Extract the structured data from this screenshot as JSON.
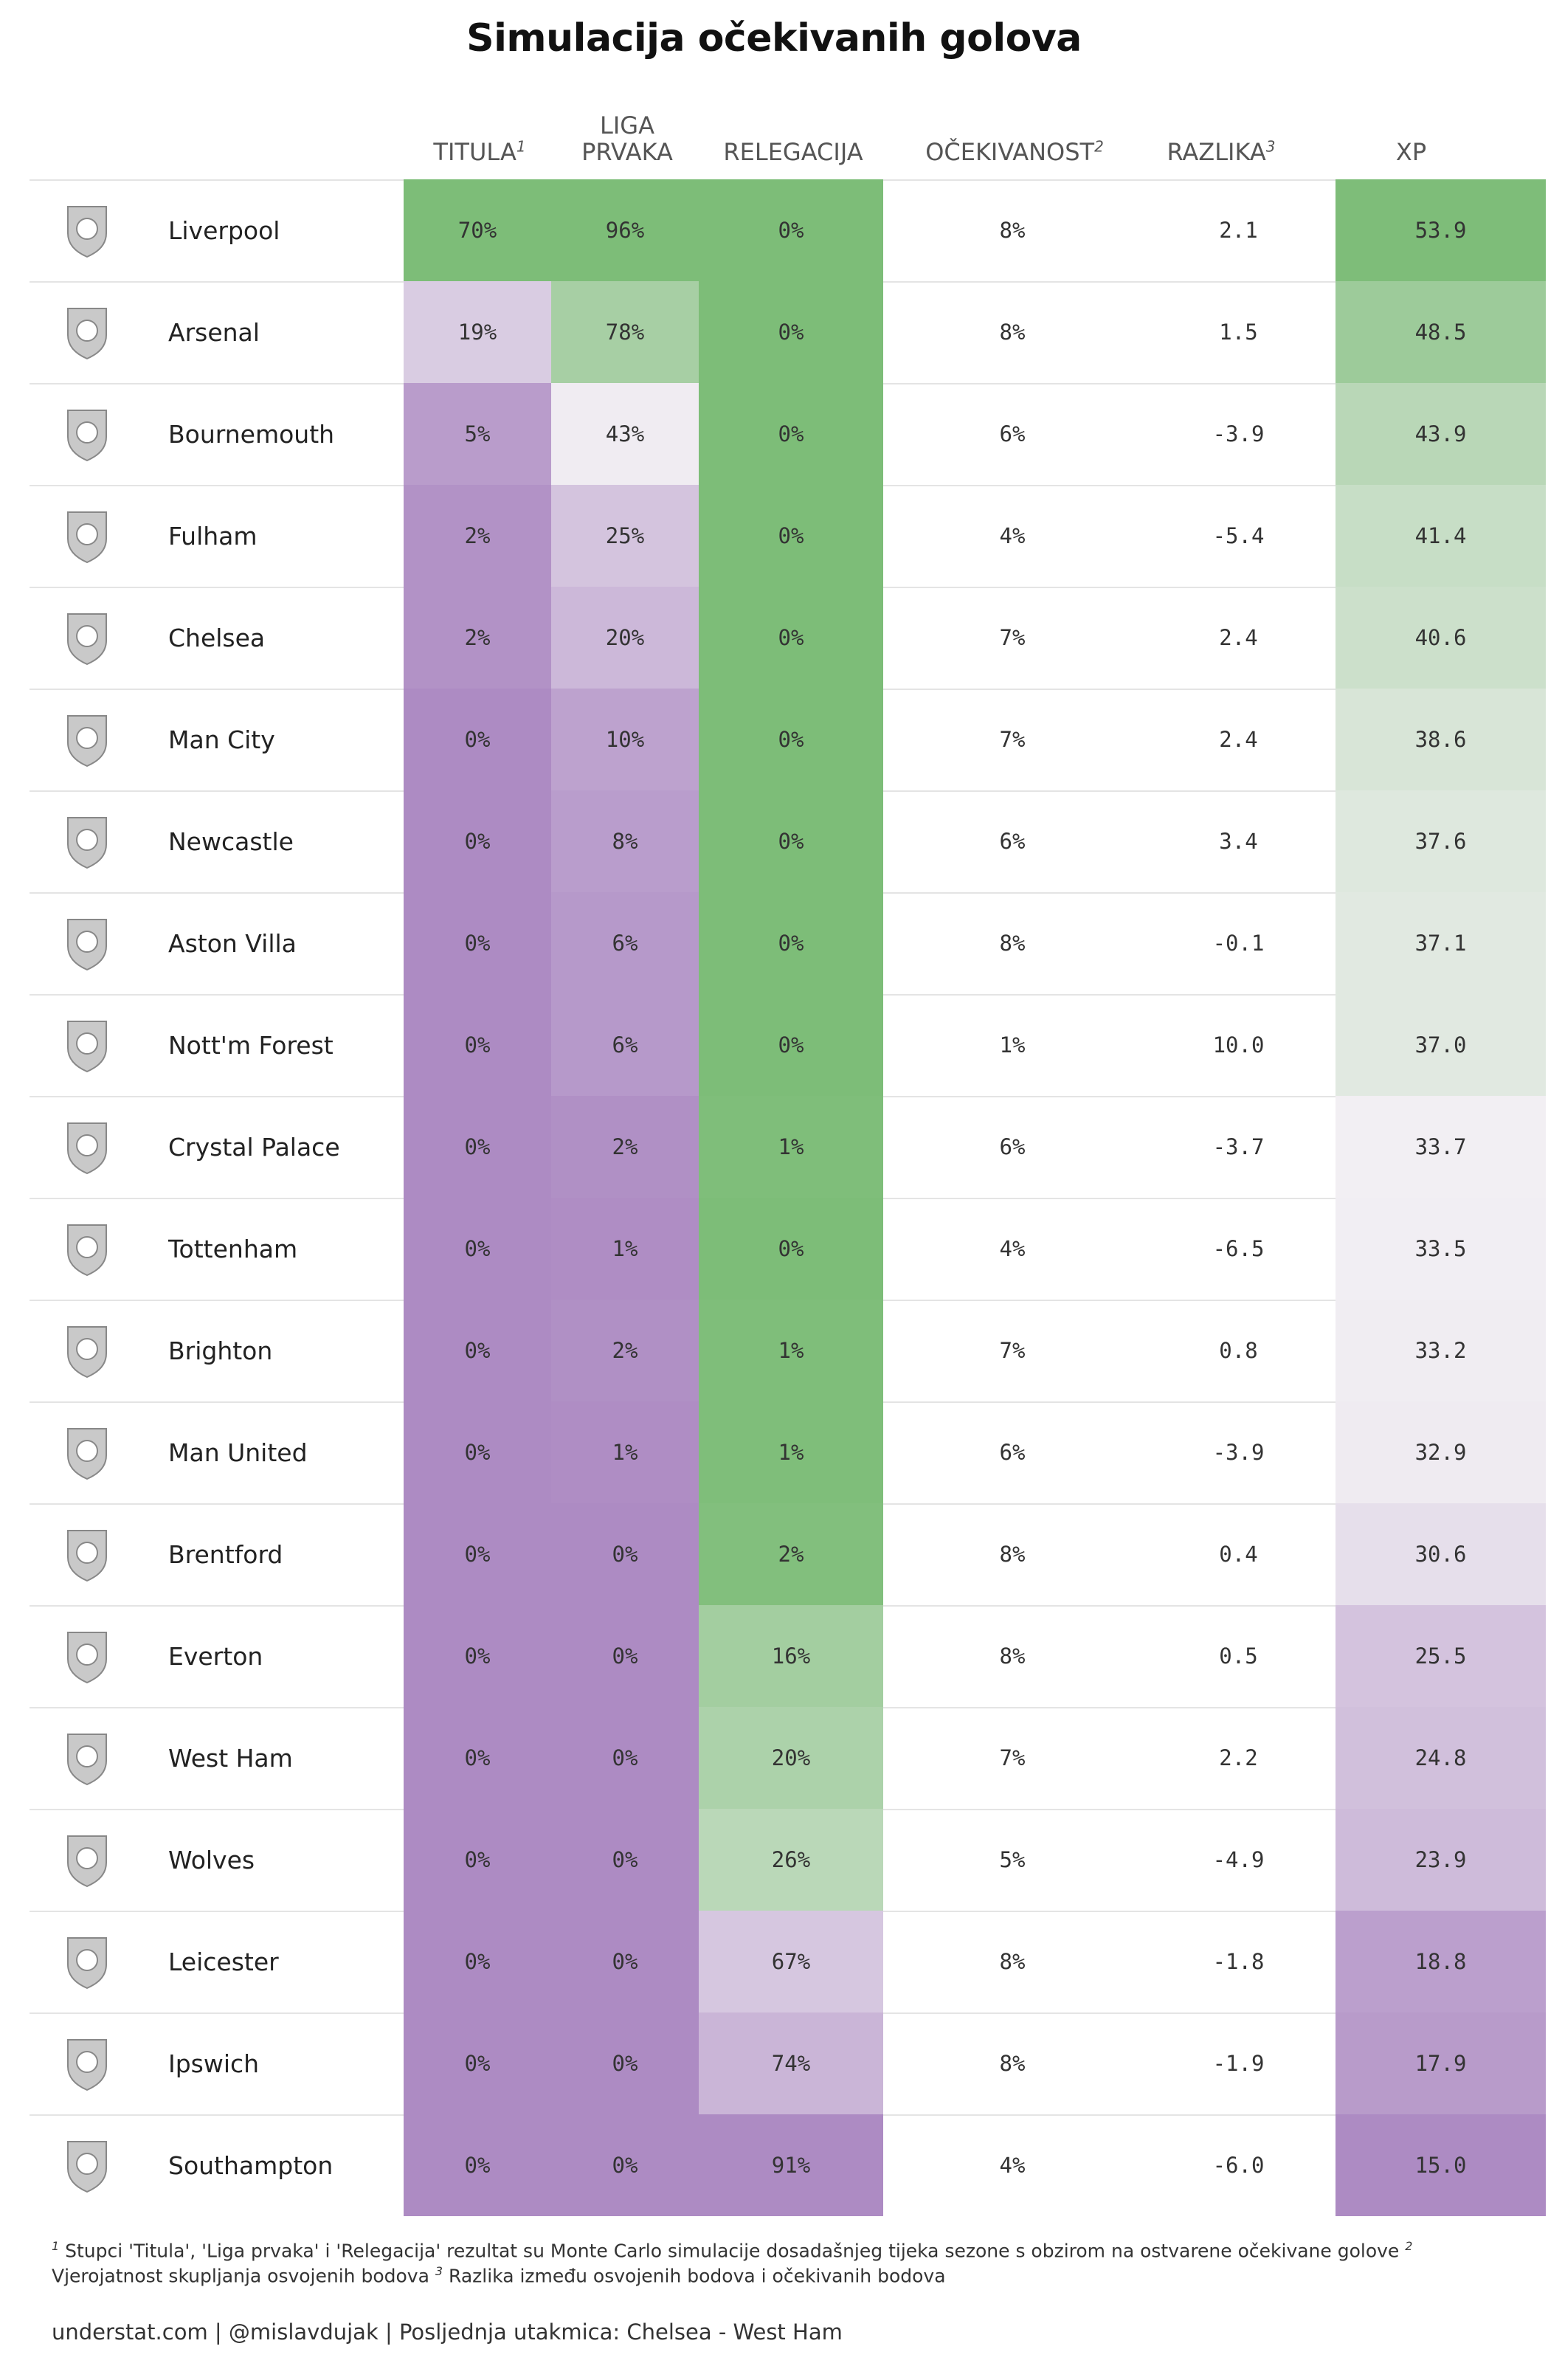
{
  "title": "Simulacija očekivanih golova",
  "headers": {
    "titula": "TITULA",
    "titula_sup": "1",
    "liga_line1": "LIGA",
    "liga_line2": "PRVAKA",
    "relegacija": "RELEGACIJA",
    "ocekivanost": "OČEKIVANOST",
    "ocekivanost_sup": "2",
    "razlika": "RAZLIKA",
    "razlika_sup": "3",
    "xp": "XP"
  },
  "colors": {
    "purple_strong": "#ad8bc3",
    "green_strong": "#7dbd78",
    "neutral": "#f3f1f4"
  },
  "teams": [
    {
      "name": "Liverpool",
      "crest": "liverpool-crest-icon",
      "titula": "70%",
      "titula_v": 70,
      "liga": "96%",
      "liga_v": 96,
      "rel": "0%",
      "rel_v": 0,
      "ocek": "8%",
      "razlika": "2.1",
      "xp": "53.9",
      "xp_v": 53.9
    },
    {
      "name": "Arsenal",
      "crest": "arsenal-crest-icon",
      "titula": "19%",
      "titula_v": 19,
      "liga": "78%",
      "liga_v": 78,
      "rel": "0%",
      "rel_v": 0,
      "ocek": "8%",
      "razlika": "1.5",
      "xp": "48.5",
      "xp_v": 48.5
    },
    {
      "name": "Bournemouth",
      "crest": "bournemouth-crest-icon",
      "titula": "5%",
      "titula_v": 5,
      "liga": "43%",
      "liga_v": 43,
      "rel": "0%",
      "rel_v": 0,
      "ocek": "6%",
      "razlika": "-3.9",
      "xp": "43.9",
      "xp_v": 43.9
    },
    {
      "name": "Fulham",
      "crest": "fulham-crest-icon",
      "titula": "2%",
      "titula_v": 2,
      "liga": "25%",
      "liga_v": 25,
      "rel": "0%",
      "rel_v": 0,
      "ocek": "4%",
      "razlika": "-5.4",
      "xp": "41.4",
      "xp_v": 41.4
    },
    {
      "name": "Chelsea",
      "crest": "chelsea-crest-icon",
      "titula": "2%",
      "titula_v": 2,
      "liga": "20%",
      "liga_v": 20,
      "rel": "0%",
      "rel_v": 0,
      "ocek": "7%",
      "razlika": "2.4",
      "xp": "40.6",
      "xp_v": 40.6
    },
    {
      "name": "Man City",
      "crest": "man-city-crest-icon",
      "titula": "0%",
      "titula_v": 0,
      "liga": "10%",
      "liga_v": 10,
      "rel": "0%",
      "rel_v": 0,
      "ocek": "7%",
      "razlika": "2.4",
      "xp": "38.6",
      "xp_v": 38.6
    },
    {
      "name": "Newcastle",
      "crest": "newcastle-crest-icon",
      "titula": "0%",
      "titula_v": 0,
      "liga": "8%",
      "liga_v": 8,
      "rel": "0%",
      "rel_v": 0,
      "ocek": "6%",
      "razlika": "3.4",
      "xp": "37.6",
      "xp_v": 37.6
    },
    {
      "name": "Aston Villa",
      "crest": "aston-villa-crest-icon",
      "titula": "0%",
      "titula_v": 0,
      "liga": "6%",
      "liga_v": 6,
      "rel": "0%",
      "rel_v": 0,
      "ocek": "8%",
      "razlika": "-0.1",
      "xp": "37.1",
      "xp_v": 37.1
    },
    {
      "name": "Nott'm Forest",
      "crest": "nottm-forest-crest-icon",
      "titula": "0%",
      "titula_v": 0,
      "liga": "6%",
      "liga_v": 6,
      "rel": "0%",
      "rel_v": 0,
      "ocek": "1%",
      "razlika": "10.0",
      "xp": "37.0",
      "xp_v": 37.0
    },
    {
      "name": "Crystal Palace",
      "crest": "crystal-palace-crest-icon",
      "titula": "0%",
      "titula_v": 0,
      "liga": "2%",
      "liga_v": 2,
      "rel": "1%",
      "rel_v": 1,
      "ocek": "6%",
      "razlika": "-3.7",
      "xp": "33.7",
      "xp_v": 33.7
    },
    {
      "name": "Tottenham",
      "crest": "tottenham-crest-icon",
      "titula": "0%",
      "titula_v": 0,
      "liga": "1%",
      "liga_v": 1,
      "rel": "0%",
      "rel_v": 0,
      "ocek": "4%",
      "razlika": "-6.5",
      "xp": "33.5",
      "xp_v": 33.5
    },
    {
      "name": "Brighton",
      "crest": "brighton-crest-icon",
      "titula": "0%",
      "titula_v": 0,
      "liga": "2%",
      "liga_v": 2,
      "rel": "1%",
      "rel_v": 1,
      "ocek": "7%",
      "razlika": "0.8",
      "xp": "33.2",
      "xp_v": 33.2
    },
    {
      "name": "Man United",
      "crest": "man-united-crest-icon",
      "titula": "0%",
      "titula_v": 0,
      "liga": "1%",
      "liga_v": 1,
      "rel": "1%",
      "rel_v": 1,
      "ocek": "6%",
      "razlika": "-3.9",
      "xp": "32.9",
      "xp_v": 32.9
    },
    {
      "name": "Brentford",
      "crest": "brentford-crest-icon",
      "titula": "0%",
      "titula_v": 0,
      "liga": "0%",
      "liga_v": 0,
      "rel": "2%",
      "rel_v": 2,
      "ocek": "8%",
      "razlika": "0.4",
      "xp": "30.6",
      "xp_v": 30.6
    },
    {
      "name": "Everton",
      "crest": "everton-crest-icon",
      "titula": "0%",
      "titula_v": 0,
      "liga": "0%",
      "liga_v": 0,
      "rel": "16%",
      "rel_v": 16,
      "ocek": "8%",
      "razlika": "0.5",
      "xp": "25.5",
      "xp_v": 25.5
    },
    {
      "name": "West Ham",
      "crest": "west-ham-crest-icon",
      "titula": "0%",
      "titula_v": 0,
      "liga": "0%",
      "liga_v": 0,
      "rel": "20%",
      "rel_v": 20,
      "ocek": "7%",
      "razlika": "2.2",
      "xp": "24.8",
      "xp_v": 24.8
    },
    {
      "name": "Wolves",
      "crest": "wolves-crest-icon",
      "titula": "0%",
      "titula_v": 0,
      "liga": "0%",
      "liga_v": 0,
      "rel": "26%",
      "rel_v": 26,
      "ocek": "5%",
      "razlika": "-4.9",
      "xp": "23.9",
      "xp_v": 23.9
    },
    {
      "name": "Leicester",
      "crest": "leicester-crest-icon",
      "titula": "0%",
      "titula_v": 0,
      "liga": "0%",
      "liga_v": 0,
      "rel": "67%",
      "rel_v": 67,
      "ocek": "8%",
      "razlika": "-1.8",
      "xp": "18.8",
      "xp_v": 18.8
    },
    {
      "name": "Ipswich",
      "crest": "ipswich-crest-icon",
      "titula": "0%",
      "titula_v": 0,
      "liga": "0%",
      "liga_v": 0,
      "rel": "74%",
      "rel_v": 74,
      "ocek": "8%",
      "razlika": "-1.9",
      "xp": "17.9",
      "xp_v": 17.9
    },
    {
      "name": "Southampton",
      "crest": "southampton-crest-icon",
      "titula": "0%",
      "titula_v": 0,
      "liga": "0%",
      "liga_v": 0,
      "rel": "91%",
      "rel_v": 91,
      "ocek": "4%",
      "razlika": "-6.0",
      "xp": "15.0",
      "xp_v": 15.0
    }
  ],
  "footnote": {
    "sup1": "1",
    "text1": " Stupci 'Titula', 'Liga prvaka' i 'Relegacija' rezultat su Monte Carlo simulacije dosadašnjeg tijeka sezone s obzirom na ostvarene očekivane golove ",
    "sup2": "2",
    "text2": " Vjerojatnost skupljanja osvojenih bodova ",
    "sup3": "3",
    "text3": " Razlika između osvojenih bodova i očekivanih bodova"
  },
  "credit": "understat.com | @mislavdujak | Posljednja utakmica: Chelsea - West Ham"
}
